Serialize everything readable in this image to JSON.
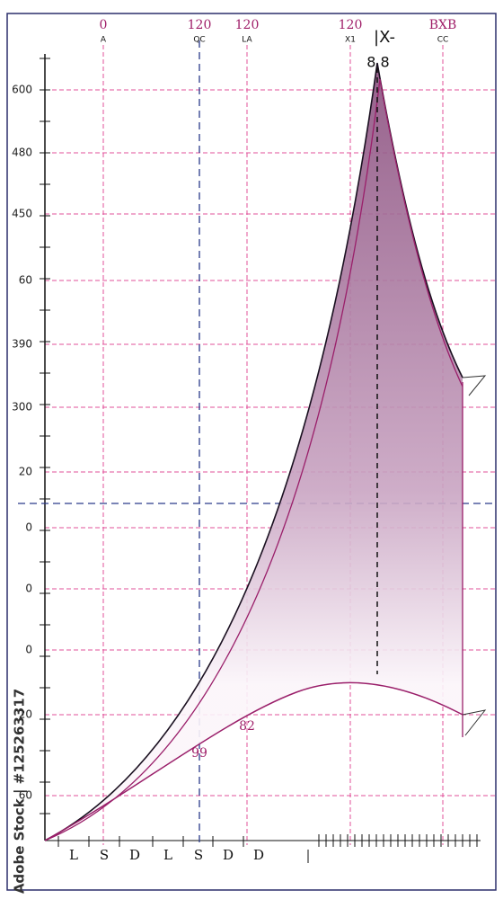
{
  "y_axis_labels": [
    "600",
    "480",
    "450",
    "60",
    "390",
    "300",
    "20",
    "0",
    "0",
    "0",
    "20",
    "60"
  ],
  "top_labels": [
    {
      "number": "0",
      "code": "A"
    },
    {
      "number": "120",
      "code": "QC"
    },
    {
      "number": "120",
      "code": "LA"
    },
    {
      "number": "120",
      "code": "X1"
    },
    {
      "number": "BXB",
      "code": "CC"
    }
  ],
  "marker": "|X-",
  "peak_label": "8 8",
  "bottom_labels": [
    "L",
    "S",
    "D",
    "L",
    "S",
    "D",
    "D"
  ],
  "curve_labels": [
    "99",
    "82"
  ],
  "watermark": "Adobe Stock | #125263317"
}
